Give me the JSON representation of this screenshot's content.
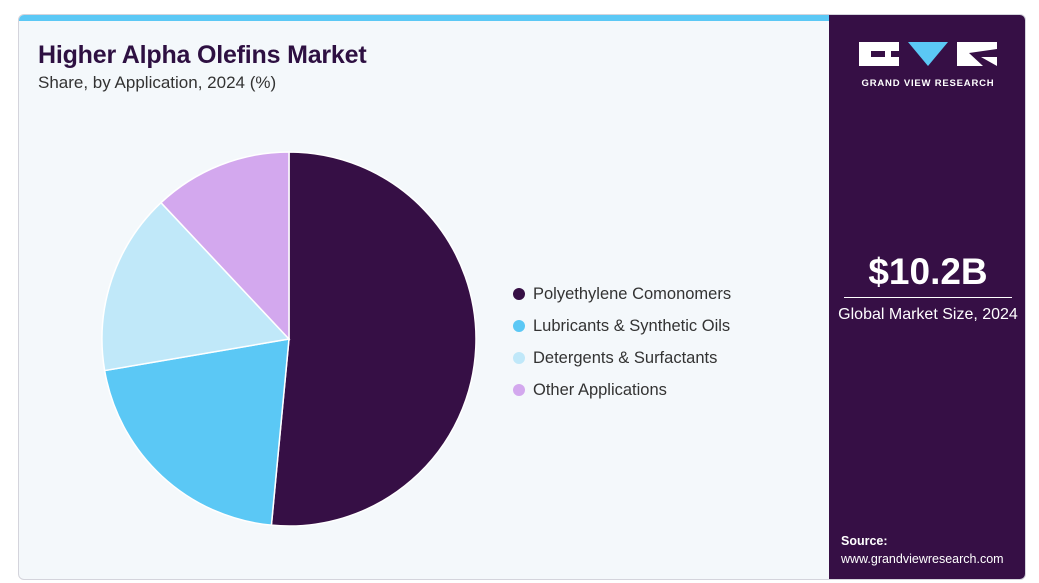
{
  "brand": {
    "name": "GRAND VIEW RESEARCH",
    "colors": {
      "panel": "#360f45",
      "accent": "#5bc8f5",
      "background": "#f4f8fb"
    }
  },
  "chart_data": {
    "type": "pie",
    "title": "Higher Alpha Olefins Market",
    "subtitle": "Share, by Application, 2024 (%)",
    "unit": "%",
    "start_angle_deg": 0,
    "direction": "clockwise",
    "slices": [
      {
        "label": "Polyethylene Comonomers",
        "value": 51.5,
        "color": "#360f45"
      },
      {
        "label": "Lubricants & Synthetic Oils",
        "value": 20.8,
        "color": "#5bc8f5"
      },
      {
        "label": "Detergents & Surfactants",
        "value": 15.7,
        "color": "#c0e8f9"
      },
      {
        "label": "Other Applications",
        "value": 12.0,
        "color": "#d3a8ee"
      }
    ],
    "legend_position": "right"
  },
  "summary": {
    "value": "$10.2B",
    "label": "Global Market Size, 2024"
  },
  "source": {
    "label": "Source:",
    "url": "www.grandviewresearch.com"
  }
}
